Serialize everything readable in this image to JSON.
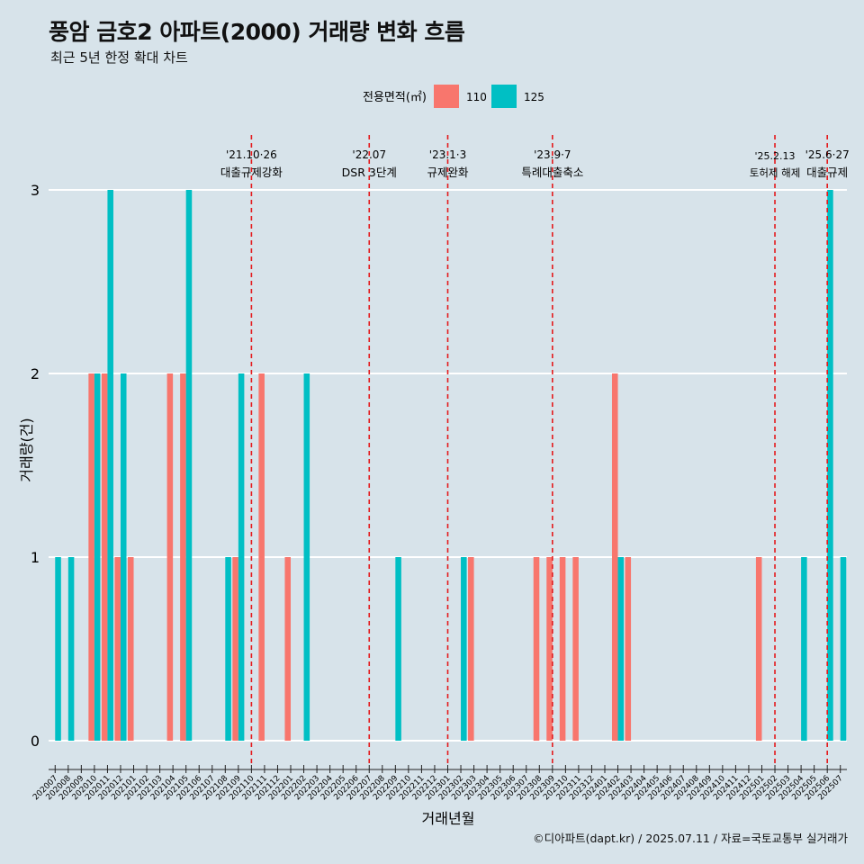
{
  "header": {
    "title": "풍암 금호2 아파트(2000) 거래량 변화 흐름",
    "subtitle": "최근 5년 한정 확대 차트"
  },
  "caption": "©디아파트(dapt.kr) / 2025.07.11 / 자료=국토교통부 실거래가",
  "colors": {
    "s110": "#F8766D",
    "s125": "#00BFC4",
    "event_line": "#E41A1C",
    "background": "#d7e3ea",
    "grid": "#ffffff"
  },
  "chart_data": {
    "type": "bar",
    "title": "풍암 금호2 아파트(2000) 거래량 변화 흐름",
    "xlabel": "거래년월",
    "ylabel": "거래량(건)",
    "ylim": [
      0,
      3
    ],
    "yticks": [
      0,
      1,
      2,
      3
    ],
    "grid": true,
    "legend": {
      "title": "전용면적(㎡)",
      "position": "top"
    },
    "categories": [
      "202007",
      "202008",
      "202009",
      "202010",
      "202011",
      "202012",
      "202101",
      "202102",
      "202103",
      "202104",
      "202105",
      "202106",
      "202107",
      "202108",
      "202109",
      "202110",
      "202111",
      "202112",
      "202201",
      "202202",
      "202203",
      "202204",
      "202205",
      "202206",
      "202207",
      "202208",
      "202209",
      "202210",
      "202211",
      "202212",
      "202301",
      "202302",
      "202303",
      "202304",
      "202305",
      "202306",
      "202307",
      "202308",
      "202309",
      "202310",
      "202311",
      "202312",
      "202401",
      "202402",
      "202403",
      "202404",
      "202405",
      "202406",
      "202407",
      "202408",
      "202409",
      "202410",
      "202411",
      "202412",
      "202501",
      "202502",
      "202503",
      "202504",
      "202505",
      "202506",
      "202507"
    ],
    "series": [
      {
        "name": "110",
        "values": [
          0,
          0,
          0,
          2,
          2,
          1,
          1,
          0,
          0,
          2,
          2,
          0,
          0,
          0,
          1,
          0,
          2,
          0,
          1,
          0,
          0,
          0,
          0,
          0,
          0,
          0,
          0,
          0,
          0,
          0,
          0,
          0,
          1,
          0,
          0,
          0,
          0,
          1,
          1,
          1,
          1,
          0,
          0,
          2,
          1,
          0,
          0,
          0,
          0,
          0,
          0,
          0,
          0,
          0,
          1,
          0,
          0,
          0,
          0,
          0,
          0
        ]
      },
      {
        "name": "125",
        "values": [
          1,
          1,
          0,
          2,
          3,
          2,
          0,
          0,
          0,
          0,
          3,
          0,
          0,
          1,
          2,
          0,
          0,
          0,
          0,
          2,
          0,
          0,
          0,
          0,
          0,
          0,
          1,
          0,
          0,
          0,
          0,
          1,
          0,
          0,
          0,
          0,
          0,
          0,
          0,
          0,
          0,
          0,
          0,
          1,
          0,
          0,
          0,
          0,
          0,
          0,
          0,
          0,
          0,
          0,
          0,
          0,
          0,
          1,
          0,
          3,
          1
        ]
      }
    ],
    "events": [
      {
        "position": 15.5,
        "date": "'21.10·26",
        "label": "대출규제강화"
      },
      {
        "position": 24.5,
        "date": "'22.07",
        "label": "DSR 3단계"
      },
      {
        "position": 30.5,
        "date": "'23.1·3",
        "label": "규제완화"
      },
      {
        "position": 38.5,
        "date": "'23.9·7",
        "label": "특례대출축소"
      },
      {
        "position": 55.5,
        "date": "'25.2.13",
        "label": "토허제 해제"
      },
      {
        "position": 59.5,
        "date": "'25.6·27",
        "label": "대출규제"
      }
    ]
  }
}
